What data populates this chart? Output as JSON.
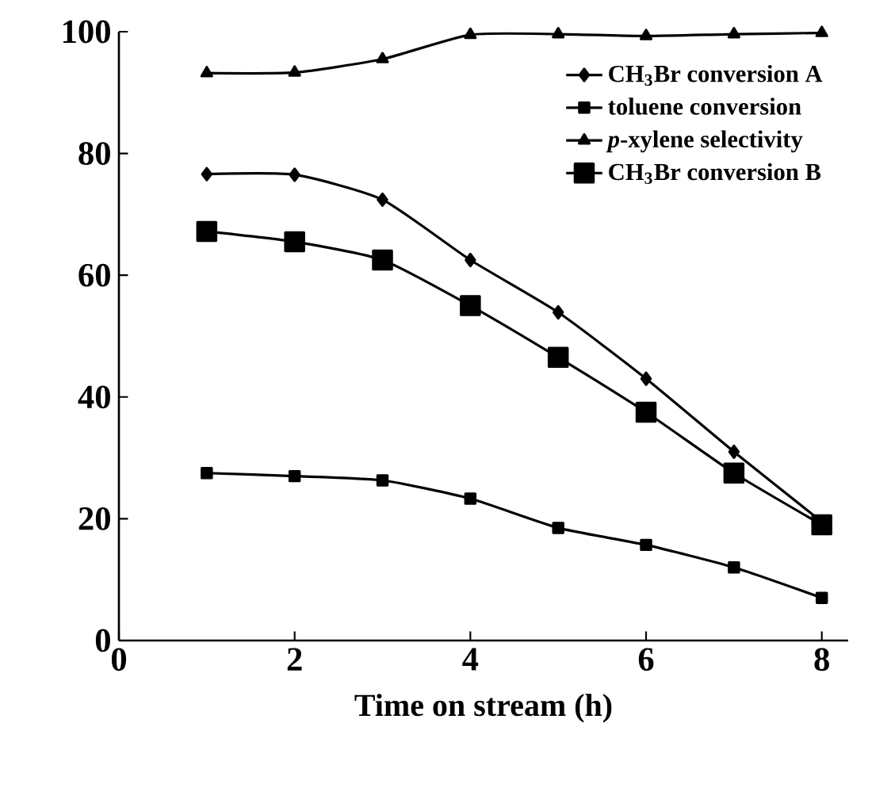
{
  "chart_data": {
    "type": "line",
    "xlabel": "Time on stream (h)",
    "x": [
      1,
      2,
      3,
      4,
      5,
      6,
      7,
      8
    ],
    "series": [
      {
        "name": "CH$_{3}$Br conversion A",
        "color": "#000000",
        "marker": "diamond",
        "values": [
          76.6,
          76.5,
          72.4,
          62.5,
          53.9,
          43,
          31,
          19.5
        ]
      },
      {
        "name": "toluene conversion",
        "color": "#000000",
        "marker": "square",
        "values": [
          27.5,
          27,
          26.3,
          23.3,
          18.5,
          15.7,
          12,
          7
        ]
      },
      {
        "name": "*p*-xylene selectivity",
        "color": "#000000",
        "marker": "triangle",
        "values": [
          93.2,
          93.3,
          95.5,
          99.5,
          99.6,
          99.3,
          99.6,
          99.8
        ]
      },
      {
        "name": "CH$_{3}$Br conversion B",
        "color": "#000000",
        "marker": "square",
        "values": [
          67.2,
          65.5,
          62.5,
          55,
          46.5,
          37.5,
          27.5,
          19
        ]
      }
    ],
    "xlim": [
      0,
      8.3
    ],
    "ylim": [
      0,
      100
    ],
    "xticks": [
      0,
      2,
      4,
      6,
      8
    ],
    "yticks": [
      0,
      20,
      40,
      60,
      80,
      100
    ],
    "grid": false,
    "legend": "top right",
    "line_style": "solid"
  }
}
